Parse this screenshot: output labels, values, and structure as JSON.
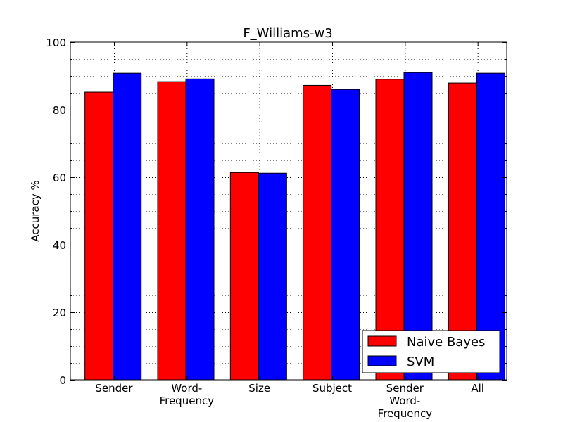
{
  "chart_data": {
    "type": "bar",
    "title": "F_Williams-w3",
    "xlabel": "",
    "ylabel": "Accuracy %",
    "ylim": [
      0,
      100
    ],
    "yticks": [
      0,
      20,
      40,
      60,
      80,
      100
    ],
    "grid": true,
    "legend_position": "lower-right",
    "categories": [
      [
        "Sender"
      ],
      [
        "Word-",
        "Frequency"
      ],
      [
        "Size"
      ],
      [
        "Subject"
      ],
      [
        "Sender",
        "Word-",
        "Frequency"
      ],
      [
        "All"
      ]
    ],
    "series": [
      {
        "name": "Naive Bayes",
        "color": "#ff0000",
        "values": [
          85.2,
          88.3,
          61.4,
          87.2,
          89.0,
          87.9
        ]
      },
      {
        "name": "SVM",
        "color": "#0000ff",
        "values": [
          90.8,
          89.1,
          61.2,
          86.0,
          91.0,
          90.8
        ]
      }
    ]
  }
}
